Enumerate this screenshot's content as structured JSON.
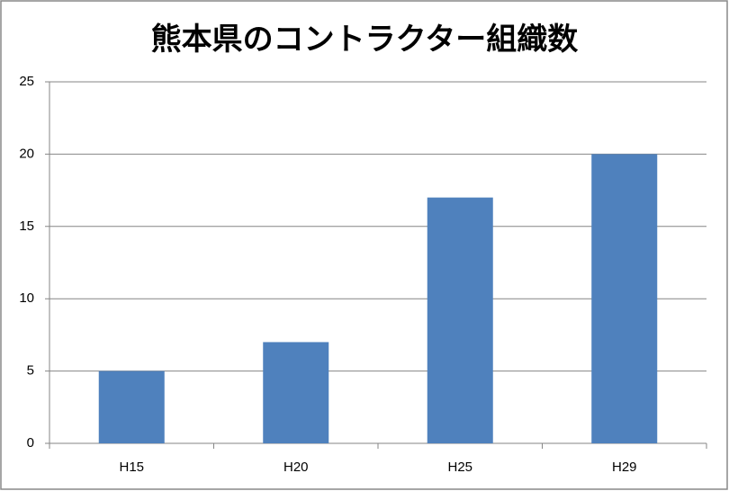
{
  "chart_data": {
    "type": "bar",
    "title": "熊本県のコントラクター組織数",
    "categories": [
      "H15",
      "H20",
      "H25",
      "H29"
    ],
    "values": [
      5,
      7,
      17,
      20
    ],
    "color": "#4f81bd",
    "ylim": [
      0,
      25
    ],
    "yticks": [
      0,
      5,
      10,
      15,
      20,
      25
    ],
    "grid": true
  }
}
